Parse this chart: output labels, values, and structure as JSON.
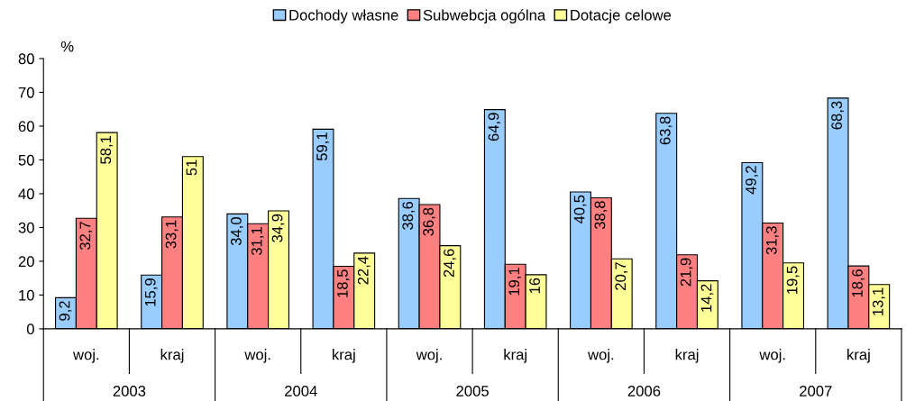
{
  "chart_data": {
    "type": "bar",
    "ylabel": "%",
    "categories": [
      "woj.",
      "kraj",
      "woj.",
      "kraj",
      "woj.",
      "kraj",
      "woj.",
      "kraj",
      "woj.",
      "kraj"
    ],
    "annotations": [
      "2003",
      "2004",
      "2005",
      "2006",
      "2007"
    ],
    "series": [
      {
        "name": "Dochody własne",
        "color": "#99ccff",
        "values": [
          9.2,
          15.9,
          34.0,
          59.1,
          38.6,
          64.9,
          40.5,
          63.8,
          49.2,
          68.3
        ],
        "value_labels": [
          "9,2",
          "15,9",
          "34,0",
          "59,1",
          "38,6",
          "64,9",
          "40,5",
          "63,8",
          "49,2",
          "68,3"
        ]
      },
      {
        "name": "Subwebcja ogólna",
        "color": "#ff8080",
        "values": [
          32.7,
          33.1,
          31.1,
          18.5,
          36.8,
          19.1,
          38.8,
          21.9,
          31.3,
          18.6
        ],
        "value_labels": [
          "32,7",
          "33,1",
          "31,1",
          "18,5",
          "36,8",
          "19,1",
          "38,8",
          "21,9",
          "31,3",
          "18,6"
        ]
      },
      {
        "name": "Dotacje celowe",
        "color": "#ffff99",
        "values": [
          58.1,
          51,
          34.9,
          22.4,
          24.6,
          16,
          20.7,
          14.2,
          19.5,
          13.1
        ],
        "value_labels": [
          "58,1",
          "51",
          "34,9",
          "22,4",
          "24,6",
          "16",
          "20,7",
          "14,2",
          "19,5",
          "13,1"
        ]
      }
    ],
    "ylim": [
      0,
      80
    ],
    "yticks": [
      0,
      10,
      20,
      30,
      40,
      50,
      60,
      70,
      80
    ],
    "grid": false,
    "legend": "top"
  }
}
